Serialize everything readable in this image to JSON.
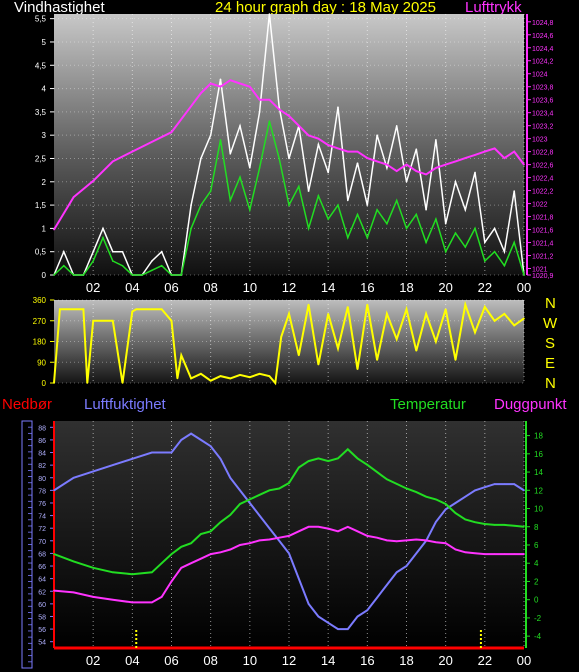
{
  "title": "24 hour graph day : 18 May 2025",
  "colors": {
    "background": "#000000",
    "wind_avg": "#22dd22",
    "wind_gust": "#ffffff",
    "pressure": "#ff33ff",
    "direction": "#ffff00",
    "rain": "#ff0000",
    "humidity": "#7b7bff",
    "temperature": "#22dd22",
    "dewpoint": "#ff33ff",
    "axis_text": "#ffffff"
  },
  "top_panel": {
    "left_label": "Vindhastighet",
    "right_label": "Lufttrykk"
  },
  "bottom_panel": {
    "labels": {
      "rain": "Nedbør",
      "humidity": "Luftfuktighet",
      "temperature": "Temperatur",
      "dewpoint": "Duggpunkt"
    }
  },
  "compass": [
    "N",
    "W",
    "S",
    "E",
    "N"
  ],
  "chart_data": [
    {
      "type": "line",
      "x_ticks": [
        "02",
        "04",
        "06",
        "08",
        "10",
        "12",
        "14",
        "16",
        "18",
        "20",
        "22",
        "00"
      ],
      "y_ticks": [
        "0",
        "0,5",
        "1",
        "1,5",
        "2",
        "2,5",
        "3",
        "3,5",
        "4",
        "4,5",
        "5",
        "5,5"
      ],
      "ylim": [
        0,
        5.6
      ],
      "y2_ticks": [
        "1020,9",
        "1021",
        "1021,2",
        "1021,4",
        "1021,6",
        "1021,8",
        "1022",
        "1022,2",
        "1022,4",
        "1022,6",
        "1022,8",
        "1023",
        "1023,2",
        "1023,4",
        "1023,6",
        "1023,8",
        "1024",
        "1024,2",
        "1024,4",
        "1024,6",
        "1024,8"
      ],
      "y2lim": [
        1020.9,
        1024.92
      ],
      "series": [
        {
          "name": "Lufttrykk",
          "axis": "right",
          "x": [
            0,
            1,
            2,
            3,
            4,
            5,
            6,
            6.5,
            7,
            7.5,
            8,
            8.5,
            9,
            9.5,
            10,
            10.5,
            11,
            11.5,
            12,
            12.5,
            13,
            13.5,
            14,
            14.5,
            15,
            15.5,
            16,
            16.5,
            17,
            17.5,
            18,
            18.5,
            19,
            19.5,
            20,
            20.5,
            21,
            21.5,
            22,
            22.5,
            23,
            23.5,
            24
          ],
          "values": [
            1021.6,
            1022.1,
            1022.35,
            1022.65,
            1022.8,
            1022.95,
            1023.1,
            1023.3,
            1023.5,
            1023.7,
            1023.85,
            1023.8,
            1023.9,
            1023.85,
            1023.8,
            1023.6,
            1023.6,
            1023.45,
            1023.35,
            1023.2,
            1023.05,
            1023.0,
            1022.9,
            1022.85,
            1022.8,
            1022.8,
            1022.7,
            1022.65,
            1022.6,
            1022.5,
            1022.6,
            1022.5,
            1022.45,
            1022.55,
            1022.6,
            1022.65,
            1022.7,
            1022.75,
            1022.8,
            1022.85,
            1022.7,
            1022.8,
            1022.6
          ]
        },
        {
          "name": "Vindkast",
          "axis": "left",
          "x": [
            0,
            0.5,
            1,
            1.5,
            2,
            2.5,
            3,
            3.5,
            4,
            4.5,
            5,
            5.5,
            6,
            6.5,
            7,
            7.5,
            8,
            8.5,
            9,
            9.5,
            10,
            10.5,
            11,
            11.5,
            12,
            12.5,
            13,
            13.5,
            14,
            14.5,
            15,
            15.5,
            16,
            16.5,
            17,
            17.5,
            18,
            18.5,
            19,
            19.5,
            20,
            20.5,
            21,
            21.5,
            22,
            22.5,
            23,
            23.5,
            24
          ],
          "values": [
            0,
            0.5,
            0,
            0,
            0.5,
            1.0,
            0.5,
            0.5,
            0,
            0,
            0.3,
            0.5,
            0,
            0,
            1.5,
            2.5,
            3.0,
            4.2,
            2.6,
            3.2,
            2.3,
            3.5,
            5.6,
            3.6,
            2.5,
            3.2,
            1.8,
            2.8,
            2.2,
            3.6,
            1.6,
            2.4,
            1.5,
            3.0,
            2.3,
            3.2,
            2.0,
            2.7,
            1.4,
            2.9,
            1.1,
            2.0,
            1.4,
            2.2,
            0.7,
            1.0,
            0.5,
            1.8,
            0
          ]
        },
        {
          "name": "Vindhastighet",
          "axis": "left",
          "x": [
            0,
            0.5,
            1,
            1.5,
            2,
            2.5,
            3,
            3.5,
            4,
            4.5,
            5,
            5.5,
            6,
            6.5,
            7,
            7.5,
            8,
            8.5,
            9,
            9.5,
            10,
            10.5,
            11,
            11.5,
            12,
            12.5,
            13,
            13.5,
            14,
            14.5,
            15,
            15.5,
            16,
            16.5,
            17,
            17.5,
            18,
            18.5,
            19,
            19.5,
            20,
            20.5,
            21,
            21.5,
            22,
            22.5,
            23,
            23.5,
            24
          ],
          "values": [
            0,
            0.2,
            0,
            0,
            0.3,
            0.8,
            0.3,
            0.2,
            0,
            0,
            0.1,
            0.2,
            0,
            0,
            1.0,
            1.5,
            1.8,
            2.9,
            1.6,
            2.1,
            1.4,
            2.3,
            3.3,
            2.5,
            1.5,
            1.9,
            1.0,
            1.7,
            1.2,
            1.5,
            0.8,
            1.3,
            0.8,
            1.4,
            1.1,
            1.6,
            1.0,
            1.3,
            0.7,
            1.2,
            0.5,
            0.9,
            0.6,
            1.0,
            0.3,
            0.5,
            0.2,
            0.7,
            0
          ]
        }
      ]
    },
    {
      "type": "line",
      "x_ticks": [
        "02",
        "04",
        "06",
        "08",
        "10",
        "12",
        "14",
        "16",
        "18",
        "20",
        "22",
        "00"
      ],
      "y_ticks": [
        "0",
        "90",
        "180",
        "270",
        "360"
      ],
      "ylim": [
        0,
        360
      ],
      "series": [
        {
          "name": "Vindretning",
          "x": [
            0,
            0.3,
            1.5,
            1.7,
            2,
            3,
            3.5,
            4,
            4.2,
            5,
            5.5,
            6,
            6.3,
            6.5,
            7,
            7.5,
            8,
            8.5,
            9,
            9.5,
            10,
            10.5,
            11,
            11.3,
            11.6,
            12,
            12.5,
            13,
            13.5,
            14,
            14.5,
            15,
            15.5,
            16,
            16.5,
            17,
            17.5,
            18,
            18.5,
            19,
            19.5,
            20,
            20.5,
            21,
            21.5,
            22,
            22.5,
            23,
            23.5,
            24
          ],
          "values": [
            0,
            320,
            320,
            0,
            270,
            270,
            0,
            310,
            320,
            320,
            320,
            270,
            20,
            120,
            20,
            40,
            10,
            30,
            20,
            35,
            25,
            40,
            30,
            0,
            200,
            300,
            120,
            340,
            80,
            300,
            150,
            330,
            60,
            340,
            100,
            300,
            190,
            320,
            140,
            300,
            180,
            320,
            100,
            340,
            220,
            330,
            270,
            300,
            250,
            280
          ]
        }
      ]
    },
    {
      "type": "line",
      "x_ticks": [
        "02",
        "04",
        "06",
        "08",
        "10",
        "12",
        "14",
        "16",
        "18",
        "20",
        "22",
        "00"
      ],
      "y_ticks": [
        "54",
        "56",
        "58",
        "60",
        "62",
        "64",
        "66",
        "68",
        "70",
        "72",
        "74",
        "76",
        "78",
        "80",
        "82",
        "84",
        "86",
        "88"
      ],
      "ylim": [
        53,
        89
      ],
      "y2_ticks": [
        "-4",
        "-2",
        "0",
        "2",
        "4",
        "6",
        "8",
        "10",
        "12",
        "14",
        "16",
        "18"
      ],
      "y2lim": [
        -5.3,
        19.6
      ],
      "series": [
        {
          "name": "Luftfuktighet",
          "axis": "left",
          "x": [
            0,
            1,
            2,
            3,
            4,
            5,
            6,
            6.5,
            7,
            7.5,
            8,
            8.5,
            9,
            9.5,
            10,
            10.5,
            11,
            11.5,
            12,
            12.5,
            13,
            13.5,
            14,
            14.5,
            15,
            15.5,
            16,
            16.5,
            17,
            17.5,
            18,
            18.5,
            19,
            19.5,
            20,
            20.5,
            21,
            21.5,
            22,
            22.5,
            23,
            23.5,
            24
          ],
          "values": [
            78,
            80,
            81,
            82,
            83,
            84,
            84,
            86,
            87,
            86,
            85,
            83,
            80,
            78,
            76,
            74,
            72,
            70,
            68,
            64,
            60,
            58,
            57,
            56,
            56,
            58,
            59,
            61,
            63,
            65,
            66,
            68,
            70,
            73,
            75,
            76,
            77,
            78,
            78.5,
            79,
            79,
            79,
            78
          ]
        },
        {
          "name": "Temperatur",
          "axis": "right",
          "x": [
            0,
            1,
            2,
            3,
            4,
            5,
            5.5,
            6,
            6.5,
            7,
            7.5,
            8,
            8.5,
            9,
            9.5,
            10,
            10.5,
            11,
            11.5,
            12,
            12.5,
            13,
            13.5,
            14,
            14.5,
            15,
            15.5,
            16,
            16.5,
            17,
            17.5,
            18,
            18.5,
            19,
            19.5,
            20,
            20.5,
            21,
            21.5,
            22,
            22.5,
            23,
            23.5,
            24
          ],
          "values": [
            5,
            4.2,
            3.5,
            3,
            2.8,
            3,
            4,
            5,
            5.8,
            6.2,
            7.2,
            7.5,
            8.5,
            9.3,
            10.5,
            11,
            11.5,
            12,
            12.2,
            12.8,
            14.5,
            15.2,
            15.5,
            15.2,
            15.5,
            16.5,
            15.5,
            14.8,
            14,
            13.2,
            12.7,
            12.2,
            11.8,
            11.3,
            11,
            10.5,
            9.5,
            8.8,
            8.5,
            8.3,
            8.2,
            8.2,
            8.1,
            8
          ]
        },
        {
          "name": "Duggpunkt",
          "axis": "right",
          "x": [
            0,
            1,
            2,
            3,
            4,
            5,
            5.5,
            6,
            6.5,
            7,
            7.5,
            8,
            8.5,
            9,
            9.5,
            10,
            10.5,
            11,
            11.5,
            12,
            12.5,
            13,
            13.5,
            14,
            14.5,
            15,
            15.5,
            16,
            16.5,
            17,
            17.5,
            18,
            18.5,
            19,
            19.5,
            20,
            20.5,
            21,
            21.5,
            22,
            22.5,
            23,
            23.5,
            24
          ],
          "values": [
            1,
            0.8,
            0.3,
            0,
            -0.3,
            -0.3,
            0.3,
            2,
            3.5,
            4,
            4.5,
            5,
            5.2,
            5.5,
            6,
            6.2,
            6.5,
            6.6,
            6.8,
            7,
            7.5,
            8,
            8,
            7.8,
            7.5,
            8,
            7.5,
            7,
            6.8,
            6.5,
            6.4,
            6.5,
            6.6,
            6.5,
            6.3,
            6.2,
            5.5,
            5.2,
            5.1,
            5,
            5,
            5,
            5,
            5
          ]
        },
        {
          "name": "Nedbør",
          "axis": "bar",
          "x": [
            4.2,
            21.8
          ],
          "values": [
            1,
            1
          ]
        }
      ]
    }
  ]
}
